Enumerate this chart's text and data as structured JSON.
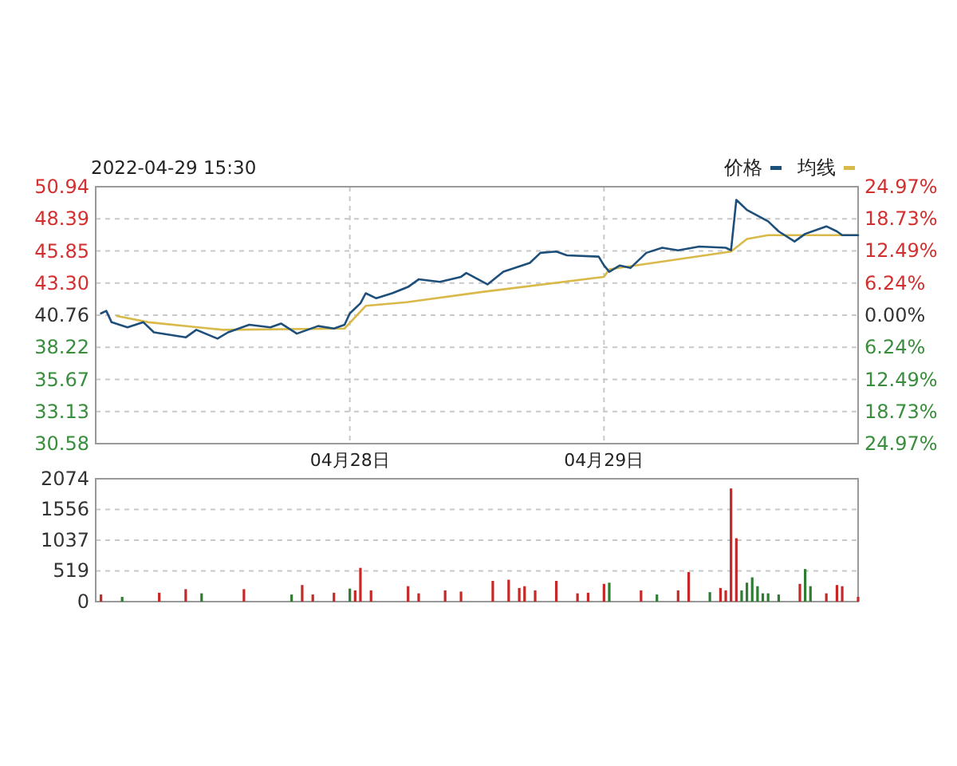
{
  "chart_data": [
    {
      "type": "line",
      "title": "2022-04-29 15:30",
      "categories": [
        null,
        null,
        null,
        null,
        null,
        null,
        null,
        null,
        null,
        null,
        null,
        null,
        null,
        null,
        null,
        null,
        null,
        null,
        null,
        null,
        null,
        null,
        null,
        null,
        null,
        null,
        null,
        null,
        null,
        null,
        null,
        null,
        null,
        null,
        null,
        null,
        null,
        null,
        null,
        null,
        null,
        null,
        null,
        null,
        null,
        null,
        null,
        null,
        "04月28日",
        null,
        null,
        null,
        null,
        null,
        null,
        null,
        null,
        null,
        null,
        null,
        null,
        null,
        null,
        null,
        null,
        null,
        null,
        null,
        null,
        null,
        null,
        null,
        null,
        null,
        null,
        null,
        null,
        null,
        null,
        null,
        null,
        null,
        null,
        null,
        null,
        null,
        null,
        null,
        null,
        null,
        null,
        null,
        null,
        null,
        null,
        null,
        "04月29日",
        null,
        null,
        null,
        null,
        null,
        null,
        null,
        null,
        null,
        null,
        null,
        null,
        null,
        null,
        null,
        null,
        null,
        null,
        null,
        null,
        null,
        null,
        null,
        null,
        null,
        null,
        null,
        null,
        null,
        null,
        null,
        null,
        null,
        null,
        null,
        null,
        null,
        null,
        null,
        null,
        null,
        null,
        null,
        null,
        null,
        null,
        null,
        null
      ],
      "ylim": [
        30.58,
        50.94
      ],
      "yticks": [
        30.58,
        33.13,
        35.67,
        38.22,
        40.76,
        {
          "value": 43.3,
          "label": "43.30"
        },
        45.85,
        48.39,
        50.94
      ],
      "y2lim": [
        -24.97,
        24.97
      ],
      "y2ticks": [
        {
          "value": -24.97,
          "label": "24.97%"
        },
        {
          "value": -18.73,
          "label": "18.73%"
        },
        {
          "value": -12.49,
          "label": "12.49%"
        },
        {
          "value": -6.24,
          "label": "6.24%"
        },
        {
          "value": 0,
          "label": "0.00%"
        },
        {
          "value": 6.24,
          "label": "6.24%"
        },
        {
          "value": 12.49,
          "label": "12.49%"
        },
        {
          "value": 18.73,
          "label": "18.73%"
        },
        {
          "value": 24.97,
          "label": "24.97%"
        }
      ],
      "grid": true,
      "legend": "top right",
      "series": [
        {
          "name": "价格",
          "color": "#1d4f7a",
          "values": [
            null,
            40.9,
            41.1,
            40.2,
            null,
            null,
            39.8,
            null,
            null,
            40.2,
            null,
            39.4,
            null,
            null,
            null,
            null,
            null,
            39.0,
            null,
            39.6,
            null,
            null,
            null,
            38.9,
            null,
            39.4,
            null,
            null,
            null,
            40.0,
            null,
            null,
            null,
            39.8,
            null,
            40.1,
            null,
            null,
            39.3,
            null,
            null,
            null,
            39.9,
            null,
            null,
            39.7,
            null,
            40.0,
            40.9,
            null,
            41.7,
            42.5,
            null,
            42.1,
            null,
            null,
            42.5,
            null,
            null,
            43.0,
            null,
            43.6,
            null,
            null,
            null,
            43.4,
            null,
            null,
            null,
            43.8,
            44.1,
            null,
            null,
            null,
            43.2,
            null,
            null,
            44.2,
            null,
            null,
            null,
            null,
            44.9,
            null,
            45.7,
            null,
            null,
            45.8,
            null,
            45.5,
            null,
            null,
            null,
            null,
            null,
            45.4,
            44.7,
            44.2,
            null,
            44.7,
            null,
            44.5,
            null,
            null,
            45.7,
            null,
            null,
            46.1,
            null,
            null,
            45.9,
            null,
            null,
            null,
            46.2,
            null,
            null,
            null,
            null,
            46.1,
            45.9,
            49.9,
            49.5,
            49.1,
            null,
            null,
            null,
            48.2,
            null,
            47.4,
            null,
            null,
            46.6,
            null,
            47.2,
            null,
            null,
            null,
            47.8,
            null,
            47.4,
            47.1,
            null,
            null,
            47.1
          ]
        },
        {
          "name": "均线",
          "color": "#d9b94a",
          "values": [
            null,
            null,
            null,
            null,
            40.7,
            null,
            null,
            null,
            null,
            null,
            40.2,
            null,
            null,
            null,
            null,
            null,
            null,
            null,
            null,
            null,
            null,
            null,
            null,
            null,
            39.6,
            null,
            null,
            null,
            null,
            null,
            null,
            null,
            null,
            null,
            null,
            null,
            null,
            null,
            null,
            null,
            null,
            null,
            null,
            null,
            null,
            null,
            null,
            39.7,
            null,
            null,
            null,
            41.5,
            null,
            null,
            null,
            null,
            null,
            null,
            null,
            41.8,
            null,
            null,
            null,
            null,
            null,
            null,
            null,
            null,
            null,
            null,
            null,
            null,
            null,
            42.6,
            null,
            null,
            null,
            null,
            null,
            null,
            null,
            null,
            null,
            null,
            null,
            null,
            null,
            null,
            null,
            null,
            null,
            null,
            null,
            null,
            null,
            null,
            43.8,
            44.4,
            null,
            null,
            null,
            null,
            null,
            null,
            null,
            null,
            null,
            null,
            null,
            null,
            null,
            null,
            null,
            null,
            null,
            null,
            null,
            null,
            null,
            null,
            45.8,
            null,
            null,
            46.8,
            null,
            null,
            null,
            47.1,
            null,
            null,
            null,
            null,
            null,
            null,
            null,
            null,
            null,
            null,
            null,
            null,
            null,
            null,
            null,
            null,
            47.1
          ]
        }
      ]
    },
    {
      "type": "bar",
      "ylim": [
        0,
        2074
      ],
      "yticks": [
        0,
        519,
        1037,
        1556,
        2074
      ],
      "grid": "y",
      "categories": [
        null,
        null,
        null,
        null,
        null,
        null,
        null,
        null,
        null,
        null,
        null,
        null,
        null,
        null,
        null,
        null,
        null,
        null,
        null,
        null,
        null,
        null,
        null,
        null,
        null,
        null,
        null,
        null,
        null,
        null,
        null,
        null,
        null,
        null,
        null,
        null,
        null,
        null,
        null,
        null,
        null,
        null,
        null,
        null,
        null,
        null,
        null,
        null,
        null,
        null,
        null,
        null,
        null,
        null,
        null,
        null,
        null,
        null,
        null,
        null,
        null,
        null,
        null,
        null,
        null,
        null,
        null,
        null,
        null,
        null,
        null,
        null,
        null,
        null,
        null,
        null,
        null,
        null,
        null,
        null,
        null,
        null,
        null,
        null,
        null,
        null,
        null,
        null,
        null,
        null,
        null,
        null,
        null,
        null,
        null,
        null,
        null,
        null,
        null,
        null,
        null,
        null,
        null,
        null,
        null,
        null,
        null,
        null,
        null,
        null,
        null,
        null,
        null,
        null,
        null,
        null,
        null,
        null,
        null,
        null,
        null,
        null,
        null,
        null,
        null,
        null,
        null,
        null,
        null,
        null,
        null,
        null,
        null,
        null,
        null,
        null,
        null,
        null,
        null,
        null,
        null,
        null,
        null,
        null,
        null
      ],
      "values": [
        null,
        120,
        null,
        null,
        null,
        80,
        null,
        null,
        null,
        null,
        null,
        null,
        150,
        null,
        null,
        null,
        null,
        210,
        null,
        null,
        140,
        null,
        null,
        null,
        null,
        null,
        null,
        null,
        210,
        null,
        null,
        null,
        null,
        null,
        null,
        null,
        null,
        120,
        null,
        280,
        null,
        120,
        null,
        null,
        null,
        150,
        null,
        null,
        220,
        190,
        570,
        null,
        190,
        null,
        null,
        null,
        null,
        null,
        null,
        260,
        null,
        140,
        null,
        null,
        null,
        null,
        190,
        null,
        null,
        170,
        null,
        null,
        null,
        null,
        null,
        350,
        null,
        null,
        370,
        null,
        230,
        260,
        null,
        190,
        null,
        null,
        null,
        350,
        null,
        null,
        null,
        140,
        null,
        150,
        null,
        null,
        300,
        320,
        null,
        null,
        null,
        null,
        null,
        190,
        null,
        null,
        120,
        null,
        null,
        null,
        190,
        null,
        500,
        null,
        null,
        null,
        160,
        null,
        230,
        190,
        1910,
        1070,
        190,
        320,
        410,
        260,
        140,
        140,
        null,
        120,
        null,
        null,
        null,
        300,
        550,
        260,
        null,
        null,
        140,
        null,
        280,
        260,
        null,
        null,
        80
      ],
      "colors": [
        null,
        "#c62828",
        null,
        null,
        null,
        "#2e7d32",
        null,
        null,
        null,
        null,
        null,
        null,
        "#c62828",
        null,
        null,
        null,
        null,
        "#c62828",
        null,
        null,
        "#2e7d32",
        null,
        null,
        null,
        null,
        null,
        null,
        null,
        "#c62828",
        null,
        null,
        null,
        null,
        null,
        null,
        null,
        null,
        "#2e7d32",
        null,
        "#c62828",
        null,
        "#c62828",
        null,
        null,
        null,
        "#c62828",
        null,
        null,
        "#2e7d32",
        "#c62828",
        "#c62828",
        null,
        "#c62828",
        null,
        null,
        null,
        null,
        null,
        null,
        "#c62828",
        null,
        "#c62828",
        null,
        null,
        null,
        null,
        "#c62828",
        null,
        null,
        "#c62828",
        null,
        null,
        null,
        null,
        null,
        "#c62828",
        null,
        null,
        "#c62828",
        null,
        "#c62828",
        "#c62828",
        null,
        "#c62828",
        null,
        null,
        null,
        "#c62828",
        null,
        null,
        null,
        "#c62828",
        null,
        "#c62828",
        null,
        null,
        "#c62828",
        "#2e7d32",
        null,
        null,
        null,
        null,
        null,
        "#c62828",
        null,
        null,
        "#2e7d32",
        null,
        null,
        null,
        "#c62828",
        null,
        "#c62828",
        null,
        null,
        null,
        "#2e7d32",
        null,
        "#c62828",
        "#c62828",
        "#c62828",
        "#c62828",
        "#2e7d32",
        "#2e7d32",
        "#2e7d32",
        "#2e7d32",
        "#2e7d32",
        "#2e7d32",
        null,
        "#2e7d32",
        null,
        null,
        null,
        "#c62828",
        "#2e7d32",
        "#2e7d32",
        null,
        null,
        "#c62828",
        null,
        "#c62828",
        "#c62828",
        null,
        null,
        "#c62828"
      ]
    }
  ]
}
